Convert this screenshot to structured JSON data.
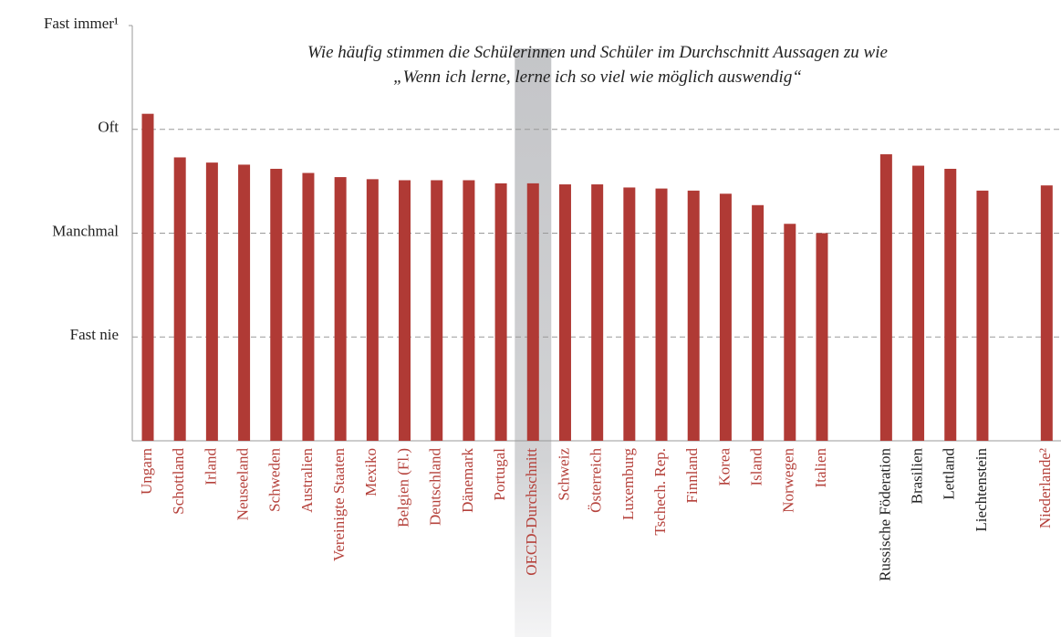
{
  "chart_data": {
    "type": "bar",
    "title": [
      "Wie häufig stimmen die Schülerinnen und Schüler im Durchschnitt Aussagen zu wie",
      "„Wenn ich lerne, lerne ich so viel wie möglich auswendig“"
    ],
    "categories": [
      "Ungarn",
      "Schottland",
      "Irland",
      "Neuseeland",
      "Schweden",
      "Australien",
      "Vereinigte Staaten",
      "Mexiko",
      "Belgien (Fl.)",
      "Deutschland",
      "Dänemark",
      "Portugal",
      "OECD-Durchschnitt",
      "Schweiz",
      "Österreich",
      "Luxemburg",
      "Tschech. Rep.",
      "Finnland",
      "Korea",
      "Island",
      "Norwegen",
      "Italien",
      null,
      "Russische Föderation",
      "Brasilien",
      "Lettland",
      "Liechtenstein",
      null,
      "Niederlande²"
    ],
    "values": [
      3.15,
      2.73,
      2.68,
      2.66,
      2.62,
      2.58,
      2.54,
      2.52,
      2.51,
      2.51,
      2.51,
      2.48,
      2.48,
      2.47,
      2.47,
      2.44,
      2.43,
      2.41,
      2.38,
      2.27,
      2.09,
      2.0,
      null,
      2.76,
      2.65,
      2.62,
      2.41,
      null,
      2.46
    ],
    "label_colors": [
      "#b5413b",
      "#b5413b",
      "#b5413b",
      "#b5413b",
      "#b5413b",
      "#b5413b",
      "#b5413b",
      "#b5413b",
      "#b5413b",
      "#b5413b",
      "#b5413b",
      "#b5413b",
      "#b5413b",
      "#b5413b",
      "#b5413b",
      "#b5413b",
      "#b5413b",
      "#b5413b",
      "#b5413b",
      "#b5413b",
      "#b5413b",
      "#b5413b",
      null,
      "#222222",
      "#222222",
      "#222222",
      "#222222",
      null,
      "#b5413b"
    ],
    "color": "#b03a35",
    "highlight": "OECD-Durchschnitt",
    "ylim": [
      0,
      4
    ],
    "yticks": [
      {
        "value": 1,
        "label": "Fast nie"
      },
      {
        "value": 2,
        "label": "Manchmal"
      },
      {
        "value": 3,
        "label": "Oft"
      },
      {
        "value": 4,
        "label": "Fast immer¹"
      }
    ],
    "grid": true
  }
}
